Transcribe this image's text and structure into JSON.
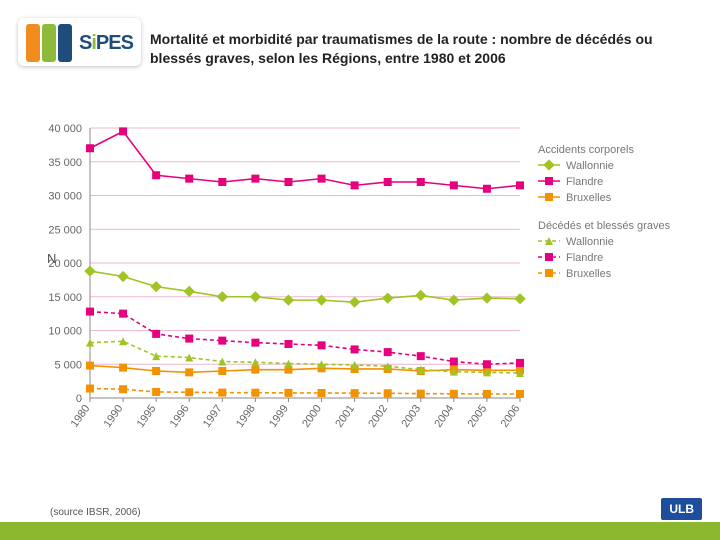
{
  "logo": {
    "text_parts": [
      "S",
      "i",
      "PES"
    ],
    "swatch_colors": [
      "#f28c1e",
      "#8fb93a",
      "#1e4d7b"
    ],
    "primary_color": "#1e4d7b",
    "accent_color": "#8fb93a"
  },
  "title": "Mortalité et morbidité par traumatismes de la route : nombre de décédés ou blessés graves, selon les Régions, entre 1980 et 2006",
  "source": "(source IBSR, 2006)",
  "ulb": "ULB",
  "footer_color": "#8cb82f",
  "chart": {
    "type": "line",
    "background_color": "#ffffff",
    "grid_color": "#efb7ce",
    "axis_color": "#888888",
    "xlabels": [
      "1980",
      "1990",
      "1995",
      "1996",
      "1997",
      "1998",
      "1999",
      "2000",
      "2001",
      "2002",
      "2003",
      "2004",
      "2005",
      "2006"
    ],
    "xtick_rotation": -55,
    "ylabel": "N",
    "ylim": [
      0,
      40000
    ],
    "ytick_step": 5000,
    "yticks": [
      "0",
      "5 000",
      "10 000",
      "15 000",
      "20 000",
      "25 000",
      "30 000",
      "35 000",
      "40 000"
    ],
    "marker_size": 4,
    "line_width": 1.6,
    "dash_pattern": "4 3",
    "label_fontsize": 11,
    "tick_fontsize": 11,
    "legend_groups": [
      {
        "header": "Accidents corporels",
        "items": [
          {
            "key": "acc_wal",
            "label": "Wallonnie",
            "color": "#9fc423",
            "marker": "diamond",
            "dashed": false
          },
          {
            "key": "acc_fla",
            "label": "Flandre",
            "color": "#e6007e",
            "marker": "square",
            "dashed": false
          },
          {
            "key": "acc_bxl",
            "label": "Bruxelles",
            "color": "#f39200",
            "marker": "square",
            "dashed": false
          }
        ]
      },
      {
        "header": "Décédés et blessés graves",
        "items": [
          {
            "key": "dec_wal",
            "label": "Wallonnie",
            "color": "#9fc423",
            "marker": "triangle",
            "dashed": true
          },
          {
            "key": "dec_fla",
            "label": "Flandre",
            "color": "#e6007e",
            "marker": "square",
            "dashed": true
          },
          {
            "key": "dec_bxl",
            "label": "Bruxelles",
            "color": "#f39200",
            "marker": "square",
            "dashed": true
          }
        ]
      }
    ],
    "series": {
      "acc_fla": [
        37000,
        39500,
        33000,
        32500,
        32000,
        32500,
        32000,
        32500,
        31500,
        32000,
        32000,
        31500,
        31000,
        31500
      ],
      "acc_wal": [
        18800,
        18000,
        16500,
        15800,
        15000,
        15000,
        14500,
        14500,
        14200,
        14800,
        15200,
        14500,
        14800,
        14700
      ],
      "acc_bxl": [
        4800,
        4500,
        4000,
        3800,
        4000,
        4200,
        4200,
        4400,
        4300,
        4300,
        4000,
        4200,
        4100,
        4100
      ],
      "dec_fla": [
        12800,
        12500,
        9500,
        8800,
        8500,
        8200,
        8000,
        7800,
        7200,
        6800,
        6200,
        5400,
        5000,
        5200
      ],
      "dec_wal": [
        8200,
        8400,
        6200,
        6000,
        5400,
        5300,
        5100,
        5000,
        4900,
        4700,
        4200,
        3900,
        3800,
        3700
      ],
      "dec_bxl": [
        1400,
        1300,
        900,
        850,
        800,
        780,
        760,
        740,
        720,
        700,
        650,
        620,
        600,
        600
      ]
    }
  }
}
